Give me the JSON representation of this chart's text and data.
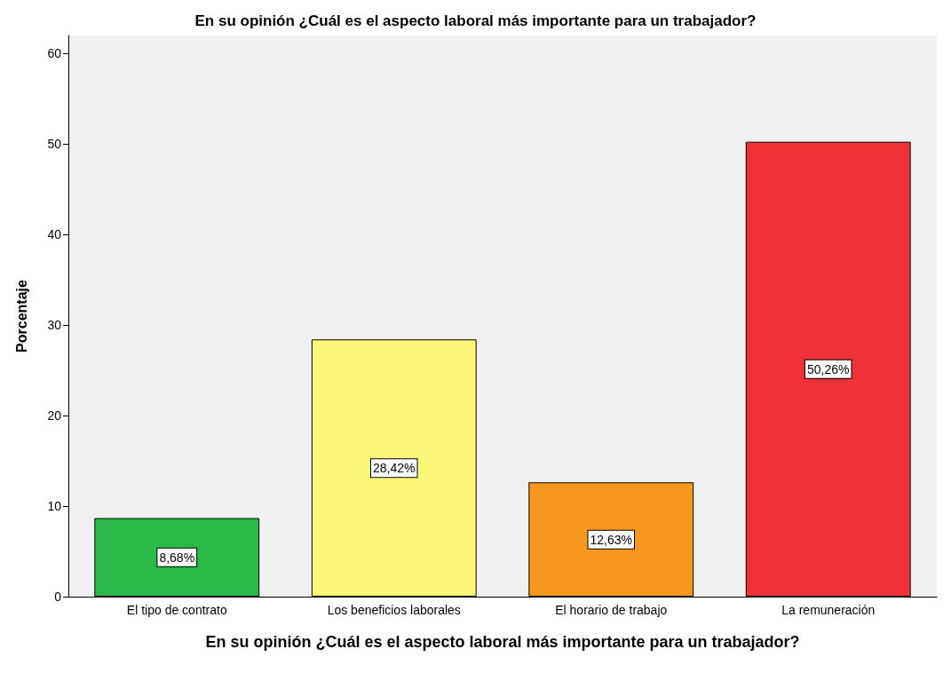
{
  "chart_data": {
    "type": "bar",
    "title": "En su opinión ¿Cuál es el aspecto laboral más importante para un trabajador?",
    "xlabel": "En su opinión ¿Cuál es el aspecto laboral más importante para un trabajador?",
    "ylabel": "Porcentaje",
    "categories": [
      "El tipo de contrato",
      "Los beneficios laborales",
      "El horario de trabajo",
      "La remuneración"
    ],
    "values": [
      8.68,
      28.42,
      12.63,
      50.26
    ],
    "colors": [
      "#2db84a",
      "#fbf877",
      "#f7991e",
      "#ef3237"
    ],
    "value_labels": [
      "8,68%",
      "28,42%",
      "12,63%",
      "50,26%"
    ],
    "ylim": [
      0,
      62
    ],
    "yticks": [
      0,
      10,
      20,
      30,
      40,
      50,
      60
    ],
    "grid": false
  }
}
